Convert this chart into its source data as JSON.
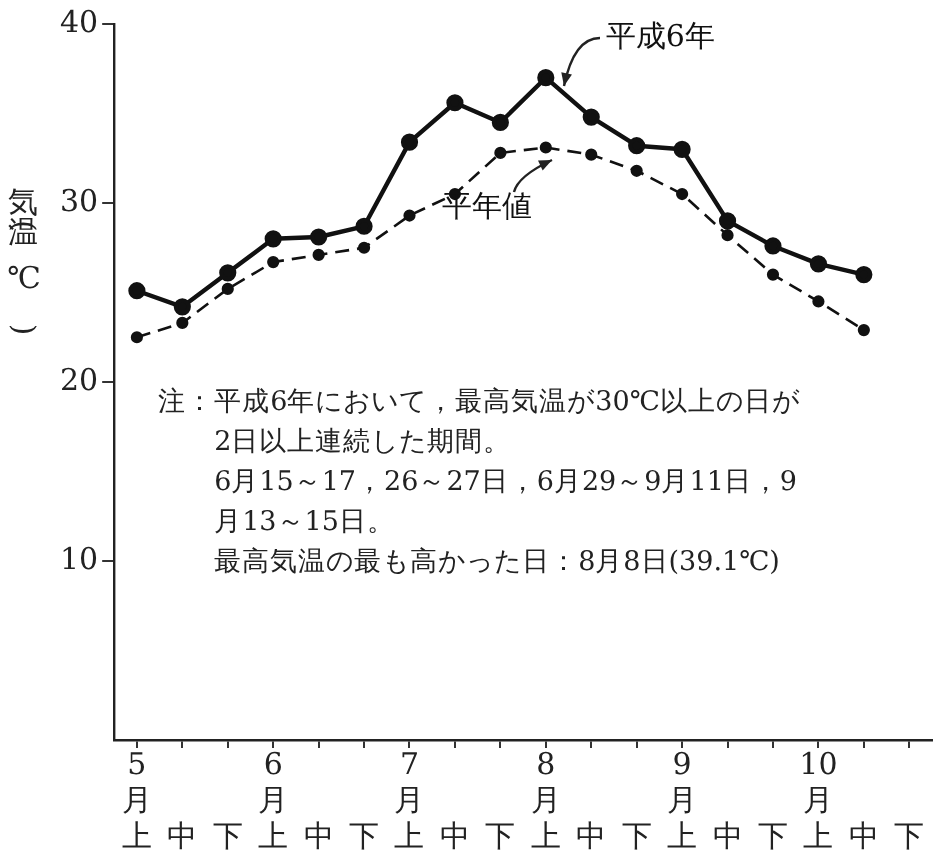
{
  "chart_data": {
    "type": "line",
    "ylabel": "気温(℃)",
    "categories": [
      "5月上",
      "中",
      "下",
      "6月上",
      "中",
      "下",
      "7月上",
      "中",
      "下",
      "8月上",
      "中",
      "下",
      "9月上",
      "中",
      "下",
      "10月上",
      "中",
      "下"
    ],
    "series": [
      {
        "name": "平成6年",
        "color": "#111111",
        "line_style": "solid",
        "values": [
          25.1,
          24.2,
          26.1,
          28.0,
          28.1,
          28.7,
          33.4,
          35.6,
          34.5,
          37.0,
          34.8,
          33.2,
          33.0,
          29.0,
          27.6,
          26.6,
          26.0,
          null
        ]
      },
      {
        "name": "平年値",
        "color": "#111111",
        "line_style": "dashed",
        "values": [
          22.5,
          23.3,
          25.2,
          26.7,
          27.1,
          27.5,
          29.3,
          30.5,
          32.8,
          33.1,
          32.7,
          31.8,
          30.5,
          28.2,
          26.0,
          24.5,
          22.9,
          null
        ]
      }
    ],
    "ylim": [
      0,
      40
    ],
    "yticks": [
      10,
      20,
      30,
      40
    ],
    "grid": false,
    "legend": false,
    "marker": "circle",
    "annotations": [
      "注：平成6年において，最高気温が30℃以上の日が2日以上連続した期間。",
      "6月15～17，26～27日，6月29～9月11日，9月13～15日。",
      "最高気温の最も高かった日：8月8日(39.1℃)"
    ]
  }
}
